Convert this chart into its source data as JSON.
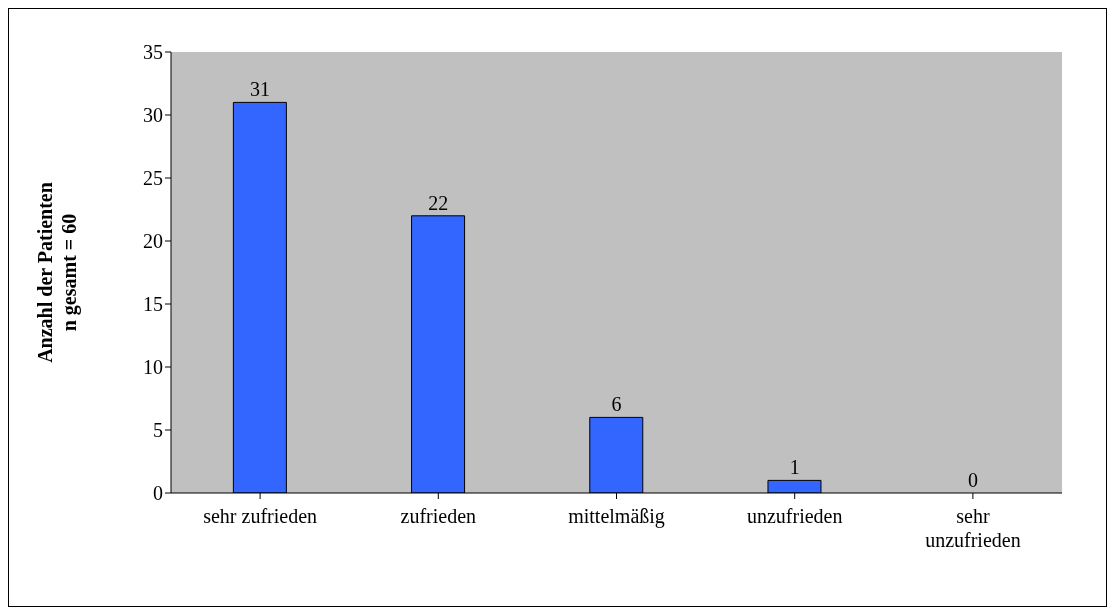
{
  "chart_data": {
    "type": "bar",
    "ylabel": "Anzahl der Patienten\nn gesamt = 60",
    "categories": [
      "sehr zufrieden",
      "zufrieden",
      "mittelmäßig",
      "unzufrieden",
      "sehr unzufrieden"
    ],
    "values": [
      31,
      22,
      6,
      1,
      0
    ],
    "color": "#3366ff",
    "ylim": [
      0,
      35
    ],
    "yticks": [
      0,
      5,
      10,
      15,
      20,
      25,
      30,
      35
    ],
    "data_labels": true
  }
}
